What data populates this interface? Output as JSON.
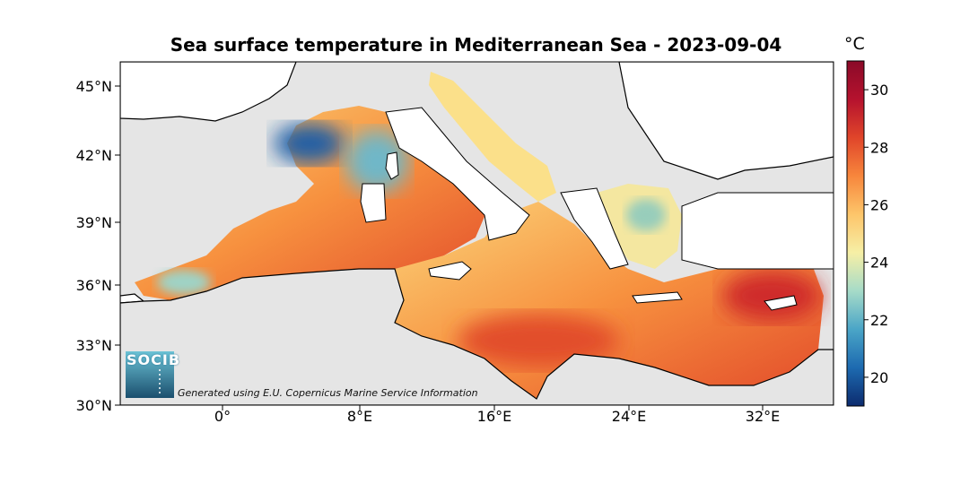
{
  "title": "Sea surface temperature in Mediterranean Sea - 2023-09-04",
  "colorbar": {
    "unit": "°C",
    "range": [
      19,
      31
    ],
    "ticks": [
      "20",
      "22",
      "24",
      "26",
      "28",
      "30"
    ],
    "colors": [
      "#0c2b6e",
      "#1d6ab0",
      "#4aa5c7",
      "#a6dbc8",
      "#f6efa6",
      "#fdc56a",
      "#f7863c",
      "#e0452a",
      "#b5122e",
      "#8a0a28"
    ]
  },
  "axes": {
    "lat_ticks": [
      "45°N",
      "42°N",
      "39°N",
      "36°N",
      "33°N",
      "30°N"
    ],
    "lon_ticks": [
      "0°",
      "8°E",
      "16°E",
      "24°E",
      "32°E"
    ]
  },
  "logo": {
    "text": "SOCIB"
  },
  "credit": "Generated using E.U. Copernicus Marine Service Information",
  "palette": {
    "land": "#ffffff",
    "nodata": "#e5e5e5",
    "coast": "#000000"
  }
}
